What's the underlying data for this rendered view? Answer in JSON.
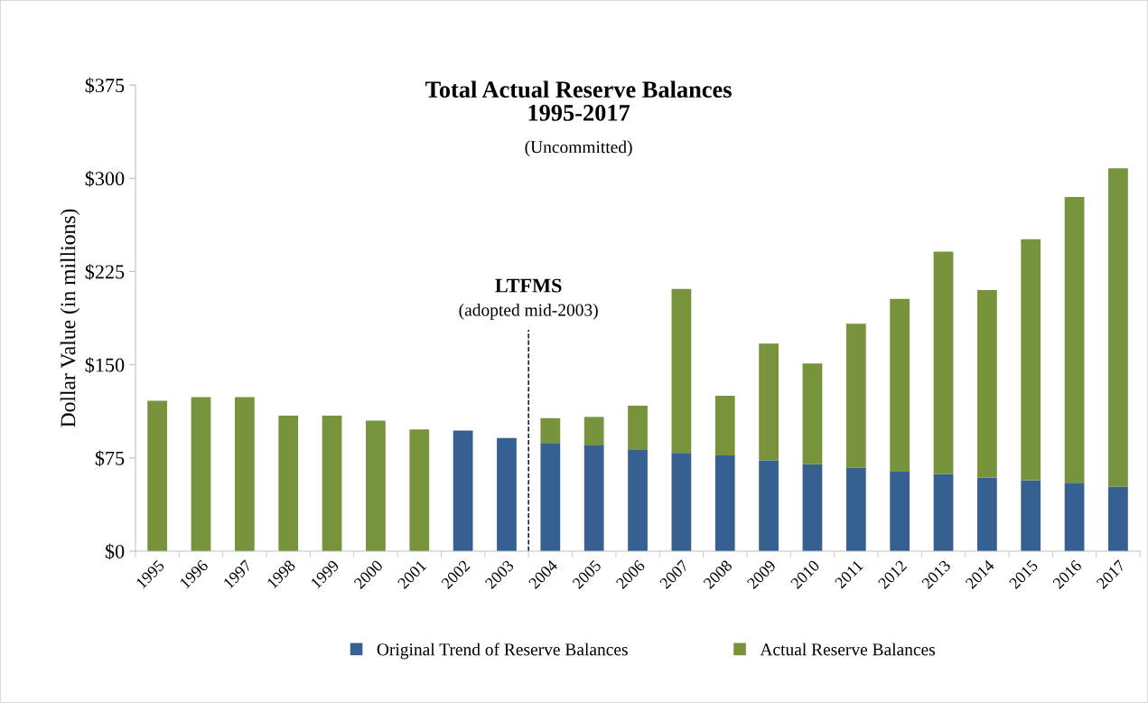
{
  "chart_data": {
    "type": "bar",
    "stacked": true,
    "title": "Total Actual Reserve Balances\n1995-2017",
    "subtitle": "(Uncommitted)",
    "ylabel": "Dollar Value (in millions)",
    "categories": [
      "1995",
      "1996",
      "1997",
      "1998",
      "1999",
      "2000",
      "2001",
      "2002",
      "2003",
      "2004",
      "2005",
      "2006",
      "2007",
      "2008",
      "2009",
      "2010",
      "2011",
      "2012",
      "2013",
      "2014",
      "2015",
      "2016",
      "2017"
    ],
    "series": [
      {
        "name": "Original Trend of Reserve Balances",
        "color": "#376092",
        "values": [
          null,
          null,
          null,
          null,
          null,
          null,
          null,
          97,
          91,
          87,
          85,
          82,
          79,
          77,
          73,
          70,
          67,
          64,
          62,
          59,
          57,
          55,
          52
        ]
      },
      {
        "name": "Actual Reserve Balances",
        "color": "#77933c",
        "values": [
          121,
          124,
          124,
          109,
          109,
          105,
          98,
          null,
          null,
          20,
          23,
          35,
          132,
          48,
          94,
          81,
          116,
          139,
          179,
          151,
          194,
          230,
          256
        ]
      }
    ],
    "ylim": [
      0,
      375
    ],
    "yticks": [
      {
        "value": 0,
        "label": "$0"
      },
      {
        "value": 75,
        "label": "$75"
      },
      {
        "value": 150,
        "label": "$150"
      },
      {
        "value": 225,
        "label": "$225"
      },
      {
        "value": 300,
        "label": "$300"
      },
      {
        "value": 375,
        "label": "$375"
      }
    ],
    "ref_lines": [
      {
        "axis": "x",
        "value": "2003",
        "label": "LTFMS",
        "line_style": "dashed",
        "color": "#000000"
      }
    ],
    "annotations": [
      "(adopted mid-2003)"
    ],
    "grid": false,
    "legend": "bottom"
  }
}
